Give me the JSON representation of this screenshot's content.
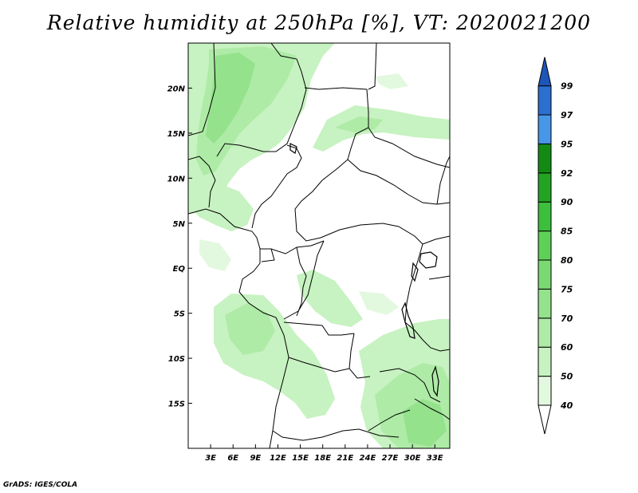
{
  "title": "Relative humidity at 250hPa [%], VT: 2020021200",
  "footer": "GrADS: IGES/COLA",
  "map": {
    "lon_range": [
      0,
      35
    ],
    "lat_range": [
      -20,
      25
    ],
    "lat_labels": [
      "20N",
      "15N",
      "10N",
      "5N",
      "EQ",
      "5S",
      "10S",
      "15S"
    ],
    "lon_labels": [
      "3E",
      "6E",
      "9E",
      "12E",
      "15E",
      "18E",
      "21E",
      "24E",
      "27E",
      "30E",
      "33E"
    ]
  },
  "colorbar": {
    "levels": [
      "99",
      "97",
      "95",
      "92",
      "90",
      "85",
      "80",
      "75",
      "70",
      "60",
      "50",
      "40"
    ],
    "colors": [
      "#ffffff",
      "#e3f9df",
      "#c7f2c1",
      "#aeeba6",
      "#94e28c",
      "#7ad972",
      "#5ed058",
      "#3cbf3c",
      "#22a422",
      "#138a13",
      "#4796e8",
      "#2b6fd1",
      "#1e56b8"
    ]
  }
}
